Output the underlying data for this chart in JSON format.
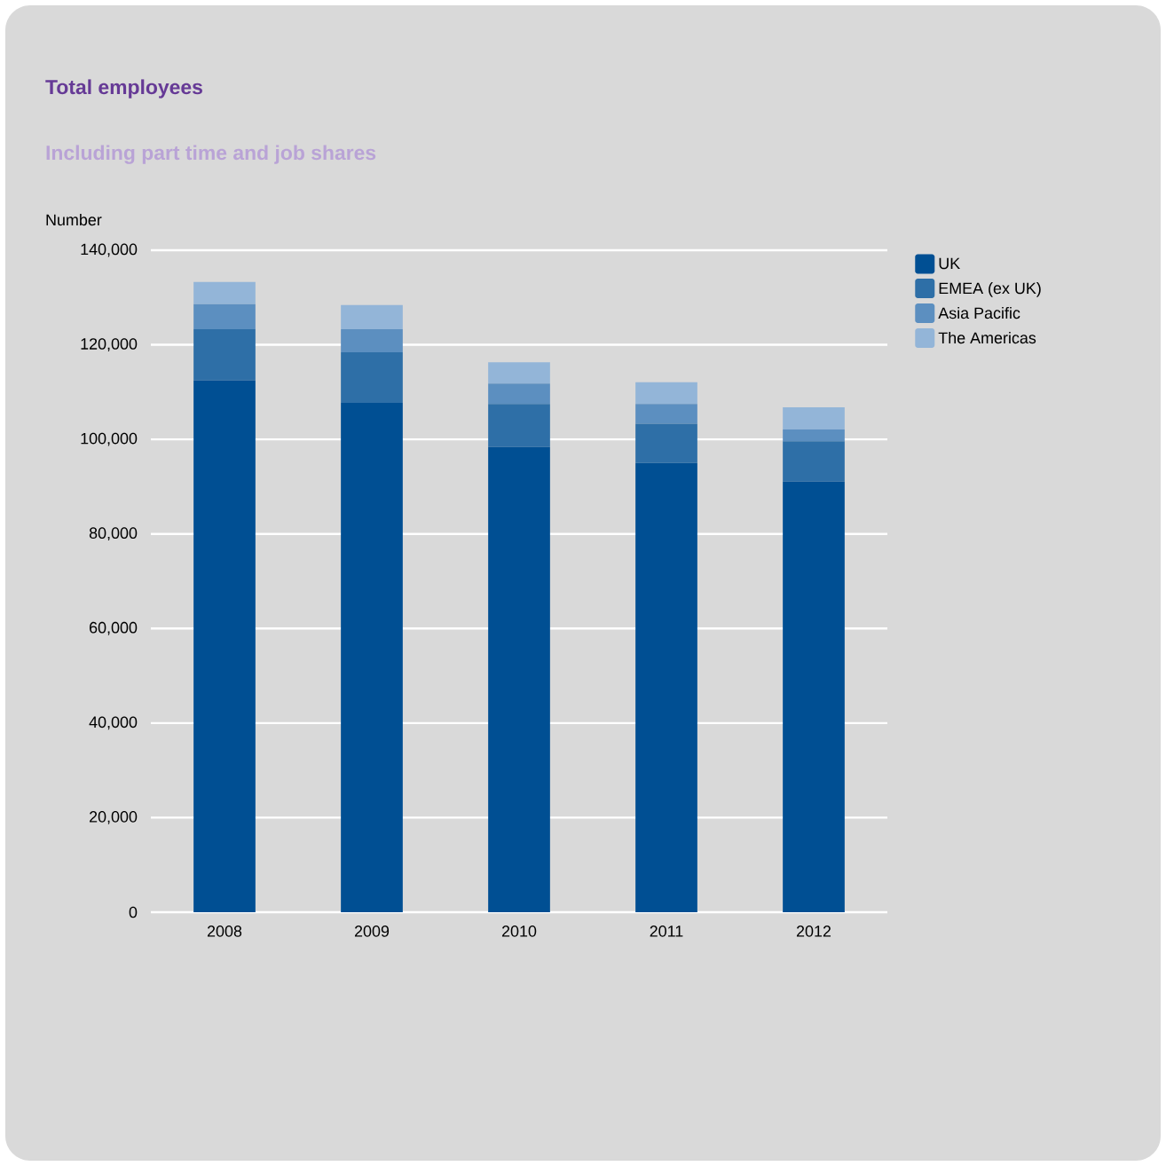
{
  "chart_data": {
    "type": "bar",
    "title": "Total employees",
    "subtitle": "Including part time and job shares",
    "ylabel": "Number",
    "categories": [
      "2008",
      "2009",
      "2010",
      "2011",
      "2012"
    ],
    "series": [
      {
        "name": "UK",
        "color": "#004f93",
        "values": [
          112500,
          107700,
          98400,
          95000,
          91100
        ]
      },
      {
        "name": "EMEA (ex UK)",
        "color": "#2e6fa7",
        "values": [
          10800,
          10700,
          9100,
          8300,
          8500
        ]
      },
      {
        "name": "Asia Pacific",
        "color": "#5c8fc0",
        "values": [
          5300,
          4900,
          4300,
          4200,
          2500
        ]
      },
      {
        "name": "The Americas",
        "color": "#93b5d8",
        "values": [
          4700,
          5100,
          4500,
          4600,
          4700
        ]
      }
    ],
    "stacked": true,
    "ylim": [
      0,
      140000
    ],
    "yticks": [
      0,
      {
        "value": 20000,
        "label": "20,000"
      },
      {
        "value": 40000,
        "label": "40,000"
      },
      {
        "value": 60000,
        "label": "60,000"
      },
      {
        "value": 80000,
        "label": "80,000"
      },
      {
        "value": 100000,
        "label": "100,000"
      },
      {
        "value": 120000,
        "label": "120,000"
      },
      {
        "value": 140000,
        "label": "140,000"
      }
    ],
    "grid": "y",
    "legend": "top right"
  }
}
